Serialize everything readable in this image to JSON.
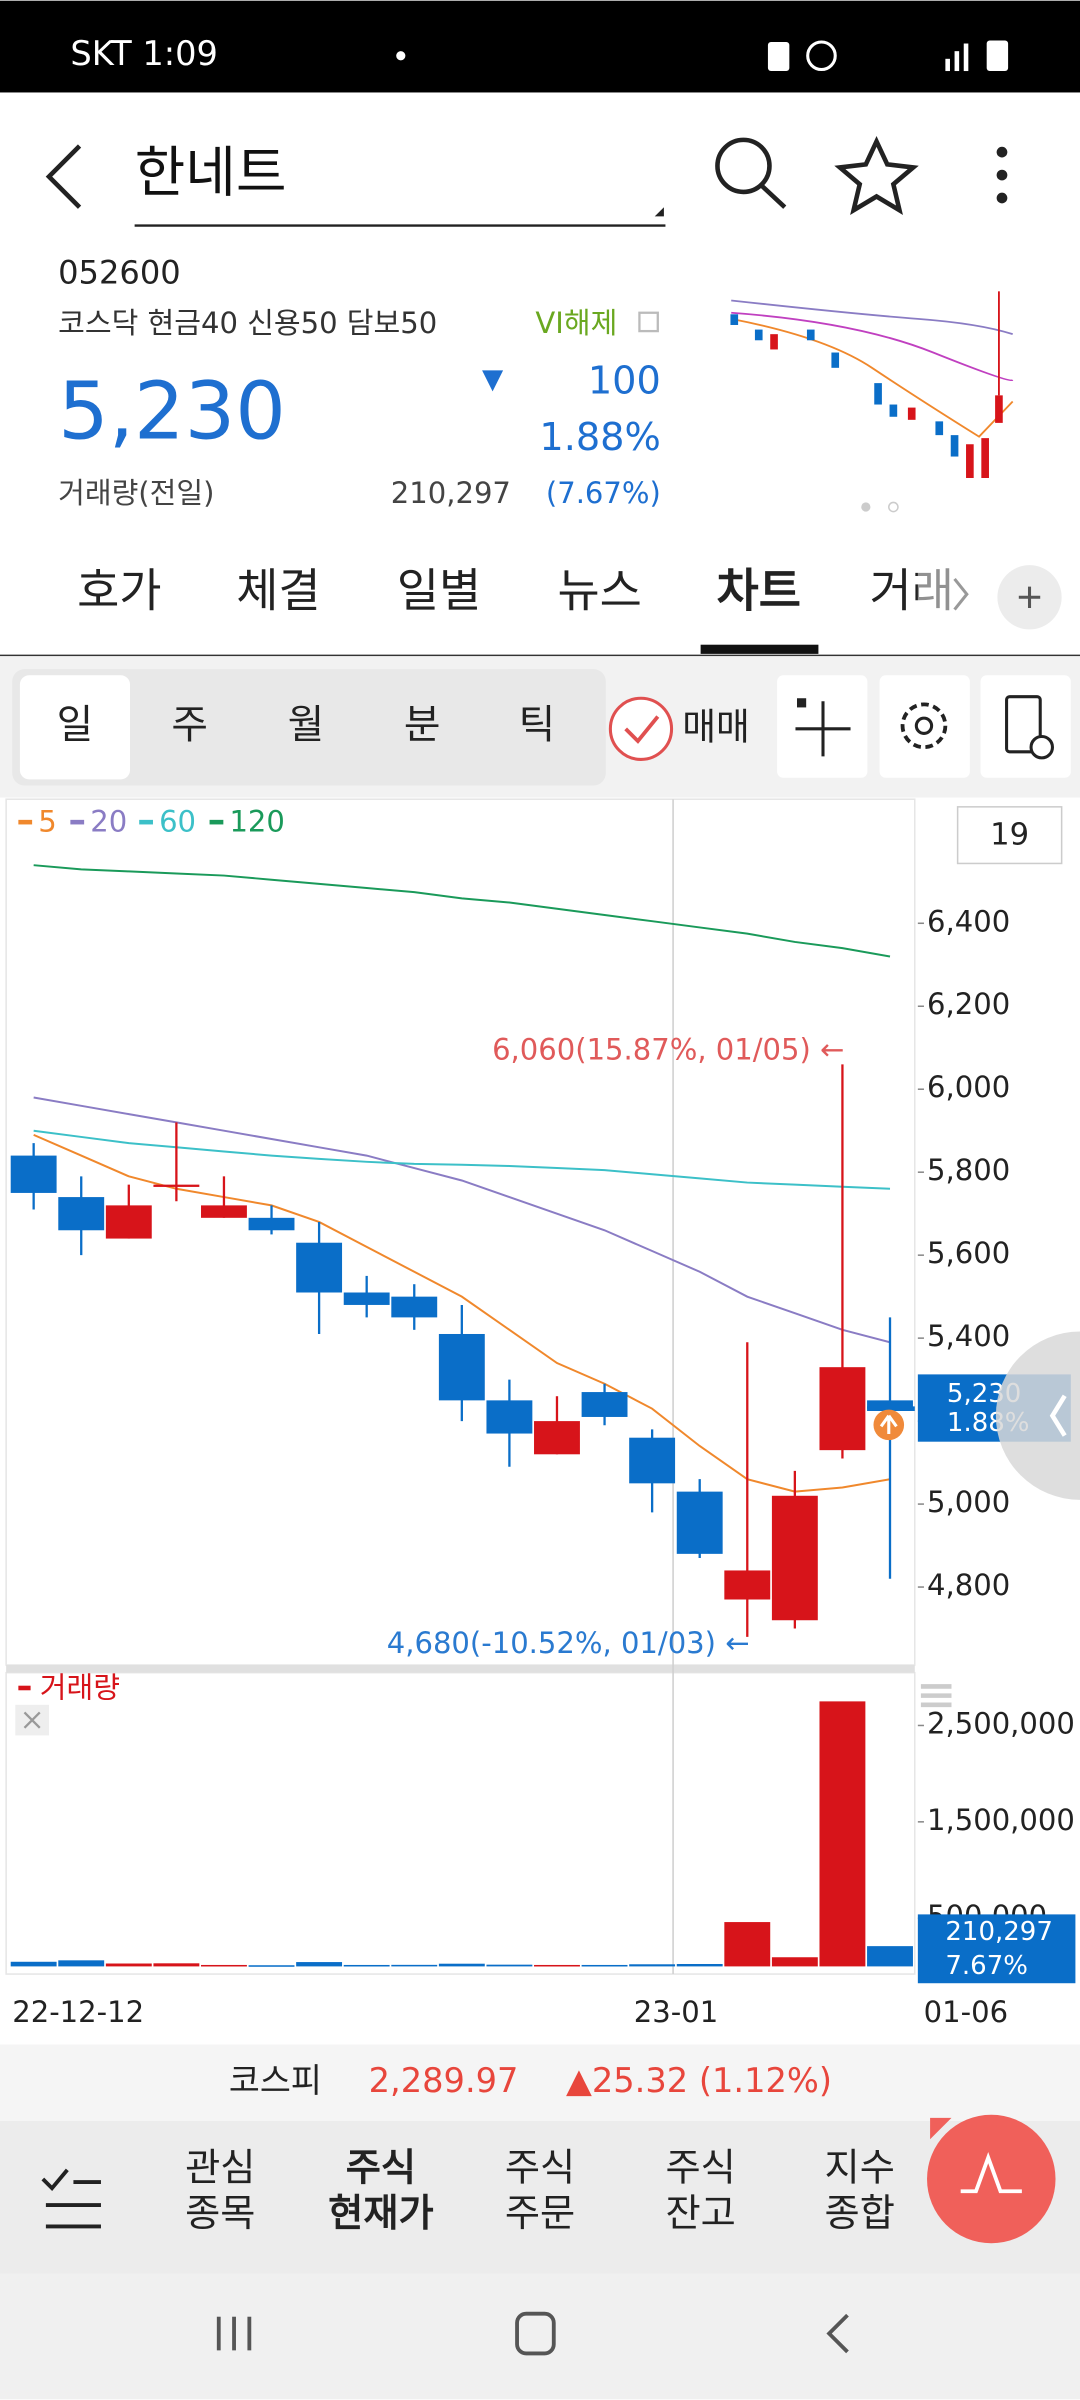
{
  "status_bar": {
    "carrier_time": "SKT 1:09"
  },
  "header": {
    "title": "한네트"
  },
  "stock": {
    "code": "052600",
    "market_info": "코스닥 현금40 신용50 담보50",
    "vi": "VI해제",
    "price": "5,230",
    "change_symbol": "▼",
    "change": "100",
    "change_pct": "1.88%",
    "volume_label": "거래량(전일)",
    "volume": "210,297",
    "volume_ratio": "(7.67%)"
  },
  "tabs": [
    "호가",
    "체결",
    "일별",
    "뉴스",
    "차트",
    "거래"
  ],
  "periods": [
    "일",
    "주",
    "월",
    "분",
    "틱"
  ],
  "trade_toggle": "매매",
  "chart_data": {
    "type": "candlestick",
    "visible_count": "19",
    "categories": [
      "22-12-12",
      null,
      null,
      null,
      null,
      null,
      null,
      null,
      null,
      null,
      null,
      null,
      null,
      null,
      "23-01",
      null,
      null,
      null,
      "01-06"
    ],
    "candles": {
      "open": [
        5840,
        5740,
        5640,
        5770,
        5690,
        5690,
        5630,
        5510,
        5500,
        5410,
        5250,
        5120,
        5270,
        5160,
        5030,
        4770,
        4720,
        5130,
        5250
      ],
      "high": [
        5870,
        5790,
        5770,
        5920,
        5790,
        5720,
        5680,
        5550,
        5530,
        5480,
        5300,
        5260,
        5290,
        5180,
        5060,
        5390,
        5080,
        6060,
        5450
      ],
      "low": [
        5710,
        5600,
        5640,
        5730,
        5690,
        5650,
        5410,
        5450,
        5420,
        5200,
        5090,
        5120,
        5190,
        4980,
        4870,
        4680,
        4700,
        5110,
        4820
      ],
      "close": [
        5750,
        5660,
        5720,
        5770,
        5720,
        5660,
        5510,
        5480,
        5450,
        5250,
        5170,
        5200,
        5210,
        5050,
        4880,
        4840,
        5020,
        5330,
        5230
      ]
    },
    "up_color": "#d7141a",
    "down_color": "#0a6ec8",
    "series": [
      {
        "name": "5",
        "color": "#f0882c",
        "values": [
          5890,
          5840,
          5790,
          5760,
          5740,
          5720,
          5680,
          5620,
          5560,
          5500,
          5420,
          5340,
          5290,
          5230,
          5140,
          5060,
          5030,
          5040,
          5060
        ]
      },
      {
        "name": "20",
        "color": "#8a7cc4",
        "values": [
          5980,
          5960,
          5940,
          5920,
          5900,
          5880,
          5860,
          5840,
          5810,
          5780,
          5740,
          5700,
          5660,
          5610,
          5560,
          5500,
          5460,
          5420,
          5390
        ]
      },
      {
        "name": "60",
        "color": "#3cc0c8",
        "values": [
          5900,
          5885,
          5870,
          5860,
          5850,
          5840,
          5832,
          5825,
          5820,
          5818,
          5815,
          5810,
          5805,
          5795,
          5785,
          5775,
          5770,
          5765,
          5760
        ]
      },
      {
        "name": "120",
        "color": "#1a9a5a",
        "values": [
          6540,
          6530,
          6525,
          6520,
          6515,
          6505,
          6495,
          6485,
          6475,
          6460,
          6450,
          6435,
          6420,
          6405,
          6390,
          6375,
          6355,
          6340,
          6320
        ]
      }
    ],
    "ylim": [
      4612,
      6688
    ],
    "yticks": [
      {
        "value": 4800,
        "label": "4,800"
      },
      {
        "value": 5000,
        "label": "5,000"
      },
      {
        "value": 5200,
        "label": "5,200"
      },
      {
        "value": 5400,
        "label": "5,400"
      },
      {
        "value": 5600,
        "label": "5,600"
      },
      {
        "value": 5800,
        "label": "5,800"
      },
      {
        "value": 6000,
        "label": "6,000"
      },
      {
        "value": 6200,
        "label": "6,200"
      },
      {
        "value": 6400,
        "label": "6,400"
      }
    ],
    "annotations": [
      "6,060(15.87%, 01/05) ←",
      "4,680(-10.52%, 01/03) ←"
    ],
    "last_price_tag": {
      "price": "5,230",
      "pct": "1.88%"
    },
    "volume": {
      "name": "거래량",
      "color": "#d7141a",
      "values": [
        48000,
        63000,
        30000,
        32000,
        15000,
        12000,
        45000,
        15000,
        16000,
        28000,
        18000,
        15000,
        15000,
        22000,
        25000,
        460000,
        95000,
        2750000,
        210297
      ],
      "ylim": [
        0,
        3000000
      ],
      "yticks": [
        {
          "value": 500000,
          "label": "500,000"
        },
        {
          "value": 1500000,
          "label": "1,500,000"
        },
        {
          "value": 2500000,
          "label": "2,500,000"
        }
      ],
      "tag": {
        "value": "210,297",
        "pct": "7.67%"
      }
    }
  },
  "index_bar": {
    "name": "코스피",
    "value": "2,289.97",
    "change": "▲25.32 (1.12%)"
  },
  "bottom_nav": [
    [
      "관심",
      "종목"
    ],
    [
      "주식",
      "현재가"
    ],
    [
      "주식",
      "주문"
    ],
    [
      "주식",
      "잔고"
    ],
    [
      "지수",
      "종합"
    ]
  ]
}
